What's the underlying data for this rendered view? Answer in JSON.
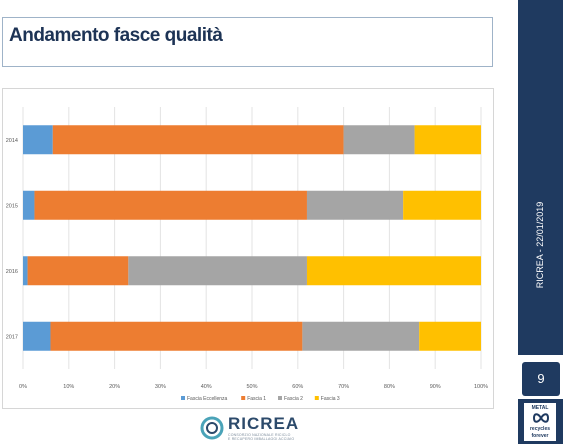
{
  "title": "Andamento fasce qualità",
  "sidebar": {
    "vertical_text": "RICREA - 22/01/2019",
    "page_number": "9",
    "badge_lines": [
      "METAL",
      "recycles",
      "forever"
    ]
  },
  "logo": {
    "name": "RICREA",
    "sub_lines": [
      "CONSORZIO NAZIONALE RICICLO",
      "E RECUPERO IMBALLAGGI ACCIAIO"
    ]
  },
  "colors": {
    "navy": "#1f3a60",
    "series": [
      "#5b9bd5",
      "#ed7d31",
      "#a5a5a5",
      "#ffc000"
    ]
  },
  "chart_data": {
    "type": "bar",
    "orientation": "horizontal",
    "stacked": true,
    "percent": true,
    "categories": [
      "2014",
      "2015",
      "2016",
      "2017"
    ],
    "series": [
      {
        "name": "Fascia Eccellenza",
        "values": [
          6.5,
          2.5,
          1.0,
          6.0
        ]
      },
      {
        "name": "Fascia 1",
        "values": [
          63.5,
          59.5,
          22.0,
          55.0
        ]
      },
      {
        "name": "Fascia 2",
        "values": [
          15.5,
          21.0,
          39.0,
          25.5
        ]
      },
      {
        "name": "Fascia 3",
        "values": [
          14.5,
          17.0,
          38.0,
          13.5
        ]
      }
    ],
    "x_ticks": [
      "0%",
      "10%",
      "20%",
      "30%",
      "40%",
      "50%",
      "60%",
      "70%",
      "80%",
      "90%",
      "100%"
    ],
    "xlim": [
      0,
      100
    ],
    "grid": true,
    "legend_position": "bottom"
  }
}
